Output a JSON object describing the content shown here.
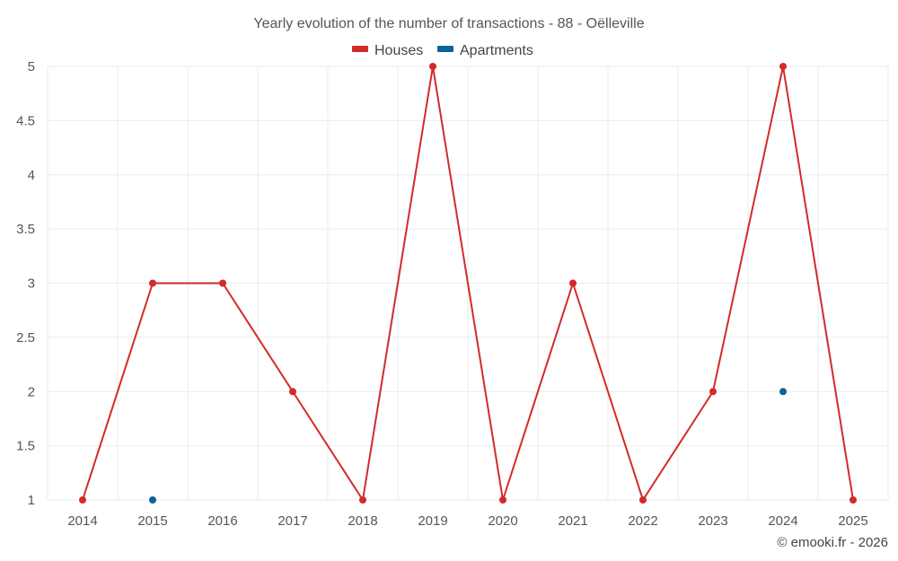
{
  "chart_data": {
    "type": "line",
    "title": "Yearly evolution of the number of transactions - 88 - Oëlleville",
    "x": [
      "2014",
      "2015",
      "2016",
      "2017",
      "2018",
      "2019",
      "2020",
      "2021",
      "2022",
      "2023",
      "2024",
      "2025"
    ],
    "y_ticks": [
      "1",
      "1.5",
      "2",
      "2.5",
      "3",
      "3.5",
      "4",
      "4.5",
      "5"
    ],
    "ylim": [
      1,
      5
    ],
    "grid": true,
    "legend_position": "top-center",
    "series": [
      {
        "name": "Houses",
        "color": "#d32a2a",
        "values": [
          1,
          3,
          3,
          2,
          1,
          5,
          1,
          3,
          1,
          2,
          5,
          1
        ]
      },
      {
        "name": "Apartments",
        "color": "#0a6496",
        "values": [
          null,
          1,
          null,
          null,
          null,
          null,
          null,
          null,
          null,
          null,
          2,
          null
        ]
      }
    ],
    "credit": "© emooki.fr - 2026"
  }
}
